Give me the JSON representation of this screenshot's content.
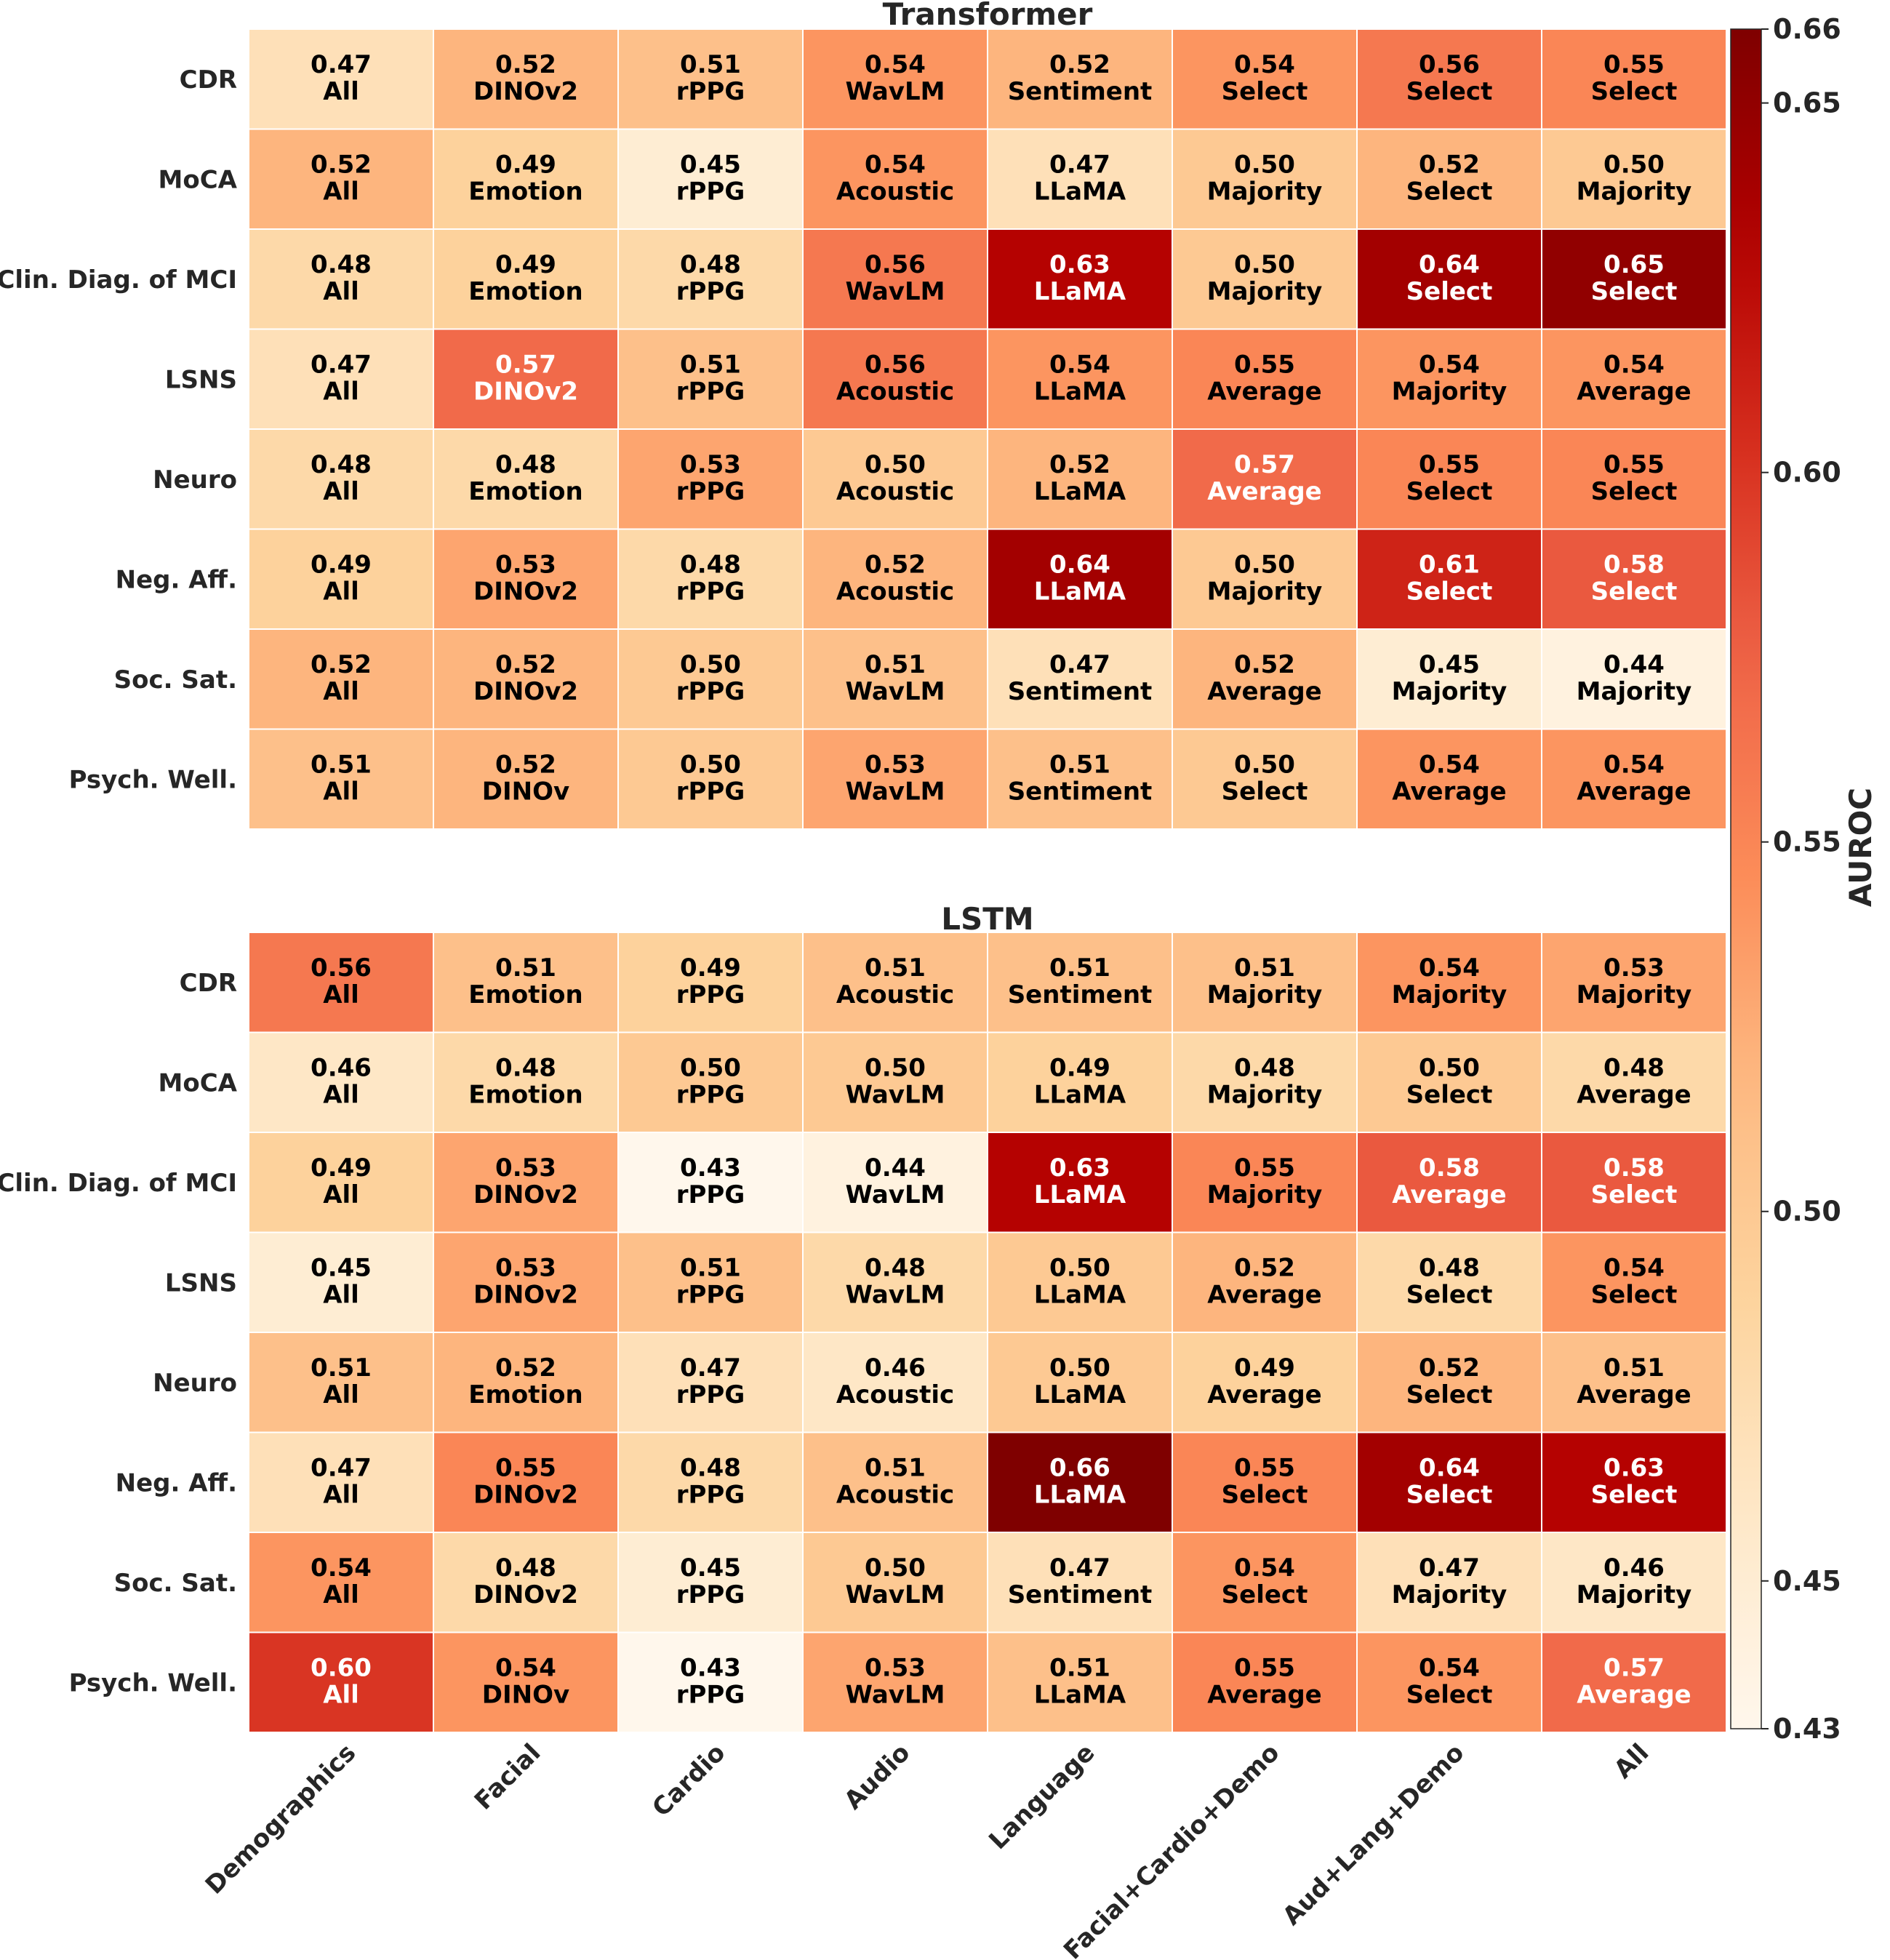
{
  "chart_data": {
    "type": "heatmap",
    "colorbar": {
      "label": "AUROC",
      "range": [
        0.43,
        0.66
      ],
      "ticks": [
        "0.66",
        "0.65",
        "0.60",
        "0.55",
        "0.50",
        "0.45",
        "0.43"
      ],
      "colormap": "OrRd"
    },
    "columns": [
      "Demographics",
      "Facial",
      "Cardio",
      "Audio",
      "Language",
      "Facial+Cardio+Demo",
      "Aud+Lang+Demo",
      "All"
    ],
    "rows": [
      "CDR",
      "MoCA",
      "Clin. Diag. of MCI",
      "LSNS",
      "Neuro",
      "Neg. Aff.",
      "Soc. Sat.",
      "Psych. Well."
    ],
    "panels": [
      {
        "title": "Transformer",
        "values": [
          [
            0.47,
            0.52,
            0.51,
            0.54,
            0.52,
            0.54,
            0.56,
            0.55
          ],
          [
            0.52,
            0.49,
            0.45,
            0.54,
            0.47,
            0.5,
            0.52,
            0.5
          ],
          [
            0.48,
            0.49,
            0.48,
            0.56,
            0.63,
            0.5,
            0.64,
            0.65
          ],
          [
            0.47,
            0.57,
            0.51,
            0.56,
            0.54,
            0.55,
            0.54,
            0.54
          ],
          [
            0.48,
            0.48,
            0.53,
            0.5,
            0.52,
            0.57,
            0.55,
            0.55
          ],
          [
            0.49,
            0.53,
            0.48,
            0.52,
            0.64,
            0.5,
            0.61,
            0.58
          ],
          [
            0.52,
            0.52,
            0.5,
            0.51,
            0.47,
            0.52,
            0.45,
            0.44
          ],
          [
            0.51,
            0.52,
            0.5,
            0.53,
            0.51,
            0.5,
            0.54,
            0.54
          ]
        ],
        "labels": [
          [
            "All",
            "DINOv2",
            "rPPG",
            "WavLM",
            "Sentiment",
            "Select",
            "Select",
            "Select"
          ],
          [
            "All",
            "Emotion",
            "rPPG",
            "Acoustic",
            "LLaMA",
            "Majority",
            "Select",
            "Majority"
          ],
          [
            "All",
            "Emotion",
            "rPPG",
            "WavLM",
            "LLaMA",
            "Majority",
            "Select",
            "Select"
          ],
          [
            "All",
            "DINOv2",
            "rPPG",
            "Acoustic",
            "LLaMA",
            "Average",
            "Majority",
            "Average"
          ],
          [
            "All",
            "Emotion",
            "rPPG",
            "Acoustic",
            "LLaMA",
            "Average",
            "Select",
            "Select"
          ],
          [
            "All",
            "DINOv2",
            "rPPG",
            "Acoustic",
            "LLaMA",
            "Majority",
            "Select",
            "Select"
          ],
          [
            "All",
            "DINOv2",
            "rPPG",
            "WavLM",
            "Sentiment",
            "Average",
            "Majority",
            "Majority"
          ],
          [
            "All",
            "DINOv",
            "rPPG",
            "WavLM",
            "Sentiment",
            "Select",
            "Average",
            "Average"
          ]
        ]
      },
      {
        "title": "LSTM",
        "values": [
          [
            0.56,
            0.51,
            0.49,
            0.51,
            0.51,
            0.51,
            0.54,
            0.53
          ],
          [
            0.46,
            0.48,
            0.5,
            0.5,
            0.49,
            0.48,
            0.5,
            0.48
          ],
          [
            0.49,
            0.53,
            0.43,
            0.44,
            0.63,
            0.55,
            0.58,
            0.58
          ],
          [
            0.45,
            0.53,
            0.51,
            0.48,
            0.5,
            0.52,
            0.48,
            0.54
          ],
          [
            0.51,
            0.52,
            0.47,
            0.46,
            0.5,
            0.49,
            0.52,
            0.51
          ],
          [
            0.47,
            0.55,
            0.48,
            0.51,
            0.66,
            0.55,
            0.64,
            0.63
          ],
          [
            0.54,
            0.48,
            0.45,
            0.5,
            0.47,
            0.54,
            0.47,
            0.46
          ],
          [
            0.6,
            0.54,
            0.43,
            0.53,
            0.51,
            0.55,
            0.54,
            0.57
          ]
        ],
        "labels": [
          [
            "All",
            "Emotion",
            "rPPG",
            "Acoustic",
            "Sentiment",
            "Majority",
            "Majority",
            "Majority"
          ],
          [
            "All",
            "Emotion",
            "rPPG",
            "WavLM",
            "LLaMA",
            "Majority",
            "Select",
            "Average"
          ],
          [
            "All",
            "DINOv2",
            "rPPG",
            "WavLM",
            "LLaMA",
            "Majority",
            "Average",
            "Select"
          ],
          [
            "All",
            "DINOv2",
            "rPPG",
            "WavLM",
            "LLaMA",
            "Average",
            "Select",
            "Select"
          ],
          [
            "All",
            "Emotion",
            "rPPG",
            "Acoustic",
            "LLaMA",
            "Average",
            "Select",
            "Average"
          ],
          [
            "All",
            "DINOv2",
            "rPPG",
            "Acoustic",
            "LLaMA",
            "Select",
            "Select",
            "Select"
          ],
          [
            "All",
            "DINOv2",
            "rPPG",
            "WavLM",
            "Sentiment",
            "Select",
            "Majority",
            "Majority"
          ],
          [
            "All",
            "DINOv",
            "rPPG",
            "WavLM",
            "LLaMA",
            "Average",
            "Select",
            "Average"
          ]
        ]
      }
    ]
  }
}
